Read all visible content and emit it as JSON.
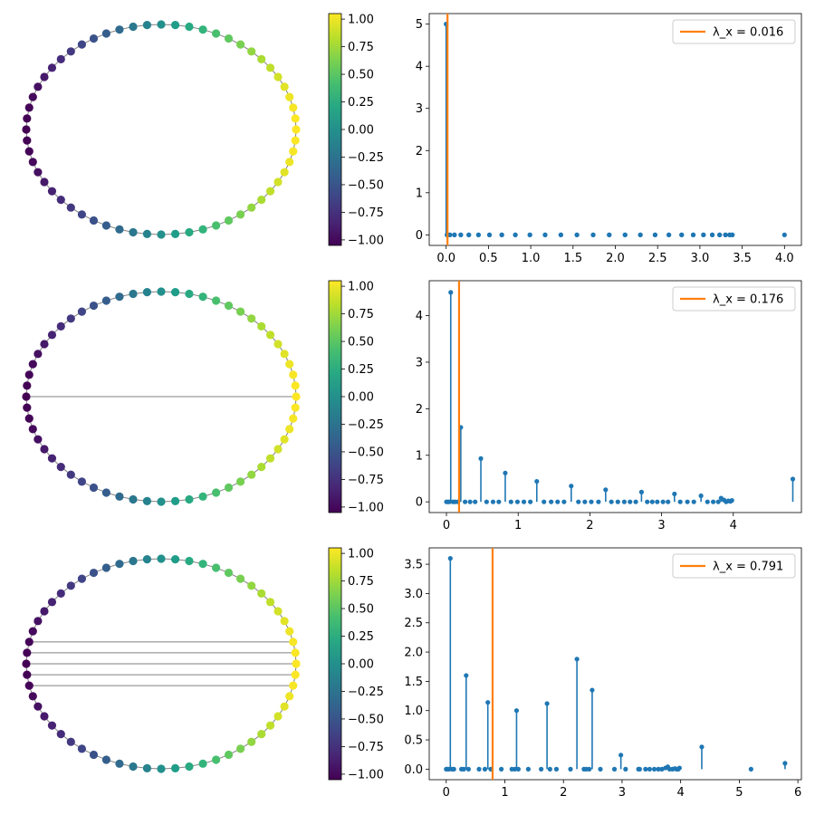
{
  "colors": {
    "stem": "#1f77b4",
    "vline": "#ff7f0e",
    "edge": "#808080"
  },
  "colormap": "viridis",
  "chart_data": [
    {
      "type": "graph",
      "panel": "graph-1",
      "nodes": 60,
      "node_value_range": [
        -1,
        1
      ],
      "chords": 0
    },
    {
      "type": "colorbar",
      "panel": "colorbar-1",
      "range": [
        -1.05,
        1.05
      ],
      "ticks": [
        1.0,
        0.75,
        0.5,
        0.25,
        0.0,
        -0.25,
        -0.5,
        -0.75,
        -1.0
      ],
      "tick_labels": [
        "1.00",
        "0.75",
        "0.50",
        "0.25",
        "0.00",
        "−0.25",
        "−0.50",
        "−0.75",
        "−1.00"
      ]
    },
    {
      "type": "stem",
      "panel": "spectrum-1",
      "xlim": [
        -0.2,
        4.2
      ],
      "ylim": [
        -0.25,
        5.25
      ],
      "xticks": [
        0.0,
        0.5,
        1.0,
        1.5,
        2.0,
        2.5,
        3.0,
        3.5,
        4.0
      ],
      "xtick_labels": [
        "0.0",
        "0.5",
        "1.0",
        "1.5",
        "2.0",
        "2.5",
        "3.0",
        "3.5",
        "4.0"
      ],
      "yticks": [
        0,
        1,
        2,
        3,
        4,
        5
      ],
      "ytick_labels": [
        "0",
        "1",
        "2",
        "3",
        "4",
        "5"
      ],
      "x": [
        0.0,
        0.011,
        0.011,
        0.044,
        0.044,
        0.098,
        0.098,
        0.173,
        0.173,
        0.268,
        0.268,
        0.382,
        0.382,
        0.512,
        0.512,
        0.658,
        0.658,
        0.818,
        0.818,
        0.99,
        0.99,
        1.17,
        1.17,
        1.356,
        1.356,
        1.546,
        1.546,
        1.738,
        1.738,
        1.928,
        1.928,
        2.115,
        2.115,
        2.296,
        2.296,
        2.47,
        2.47,
        2.633,
        2.633,
        2.784,
        2.784,
        2.921,
        2.921,
        3.042,
        3.042,
        3.146,
        3.146,
        3.233,
        3.233,
        3.302,
        3.302,
        3.352,
        3.352,
        3.383,
        3.383,
        4.0
      ],
      "y": [
        5.0,
        0,
        0,
        0,
        0,
        0,
        0,
        0,
        0,
        0,
        0,
        0,
        0,
        0,
        0,
        0,
        0,
        0,
        0,
        0,
        0,
        0,
        0,
        0,
        0,
        0,
        0,
        0,
        0,
        0,
        0,
        0,
        0,
        0,
        0,
        0,
        0,
        0,
        0,
        0,
        0,
        0,
        0,
        0,
        0,
        0,
        0,
        0,
        0,
        0,
        0,
        0,
        0,
        0,
        0,
        0
      ],
      "vline": {
        "x": 0.016,
        "label": "λ_x = 0.016"
      }
    },
    {
      "type": "graph",
      "panel": "graph-2",
      "nodes": 60,
      "node_value_range": [
        -1,
        1
      ],
      "chords": 1
    },
    {
      "type": "colorbar",
      "panel": "colorbar-2",
      "range": [
        -1.05,
        1.05
      ],
      "ticks": [
        1.0,
        0.75,
        0.5,
        0.25,
        0.0,
        -0.25,
        -0.5,
        -0.75,
        -1.0
      ],
      "tick_labels": [
        "1.00",
        "0.75",
        "0.50",
        "0.25",
        "0.00",
        "−0.25",
        "−0.50",
        "−0.75",
        "−1.00"
      ]
    },
    {
      "type": "stem",
      "panel": "spectrum-2",
      "xlim": [
        -0.24,
        4.95
      ],
      "ylim": [
        -0.23,
        4.75
      ],
      "xticks": [
        0,
        1,
        2,
        3,
        4
      ],
      "xtick_labels": [
        "0",
        "1",
        "2",
        "3",
        "4"
      ],
      "yticks": [
        0,
        1,
        2,
        3,
        4
      ],
      "ytick_labels": [
        "0",
        "1",
        "2",
        "3",
        "4"
      ],
      "x": [
        0.0,
        0.02,
        0.04,
        0.06,
        0.09,
        0.12,
        0.16,
        0.2,
        0.26,
        0.33,
        0.4,
        0.48,
        0.56,
        0.65,
        0.73,
        0.82,
        0.9,
        0.99,
        1.08,
        1.17,
        1.26,
        1.36,
        1.46,
        1.55,
        1.64,
        1.74,
        1.84,
        1.93,
        2.02,
        2.12,
        2.22,
        2.3,
        2.39,
        2.48,
        2.56,
        2.64,
        2.72,
        2.8,
        2.87,
        2.94,
        3.02,
        3.09,
        3.18,
        3.26,
        3.36,
        3.45,
        3.55,
        3.64,
        3.72,
        3.79,
        3.83,
        3.87,
        3.9,
        3.93,
        3.96,
        3.98,
        4.83
      ],
      "y": [
        0,
        0,
        0,
        4.5,
        0,
        0,
        0,
        1.6,
        0,
        0,
        0,
        0.93,
        0,
        0,
        0,
        0.62,
        0,
        0,
        0,
        0,
        0.44,
        0,
        0,
        0,
        0,
        0.34,
        0,
        0,
        0,
        0,
        0.26,
        0,
        0,
        0,
        0,
        0,
        0.21,
        0,
        0,
        0,
        0,
        0,
        0.17,
        0,
        0,
        0,
        0.13,
        0,
        0,
        0,
        0.08,
        0.04,
        0,
        0.02,
        0.01,
        0.03,
        0.49
      ],
      "vline": {
        "x": 0.176,
        "label": "λ_x = 0.176"
      }
    },
    {
      "type": "graph",
      "panel": "graph-3",
      "nodes": 60,
      "node_value_range": [
        -1,
        1
      ],
      "chords": 5
    },
    {
      "type": "colorbar",
      "panel": "colorbar-3",
      "range": [
        -1.05,
        1.05
      ],
      "ticks": [
        1.0,
        0.75,
        0.5,
        0.25,
        0.0,
        -0.25,
        -0.5,
        -0.75,
        -1.0
      ],
      "tick_labels": [
        "1.00",
        "0.75",
        "0.50",
        "0.25",
        "0.00",
        "−0.25",
        "−0.50",
        "−0.75",
        "−1.00"
      ]
    },
    {
      "type": "stem",
      "panel": "spectrum-3",
      "xlim": [
        -0.29,
        6.06
      ],
      "ylim": [
        -0.18,
        3.78
      ],
      "xticks": [
        0,
        1,
        2,
        3,
        4,
        5,
        6
      ],
      "xtick_labels": [
        "0",
        "1",
        "2",
        "3",
        "4",
        "5",
        "6"
      ],
      "yticks": [
        0.0,
        0.5,
        1.0,
        1.5,
        2.0,
        2.5,
        3.0,
        3.5
      ],
      "ytick_labels": [
        "0.0",
        "0.5",
        "1.0",
        "1.5",
        "2.0",
        "2.5",
        "3.0",
        "3.5"
      ],
      "x": [
        0.0,
        0.02,
        0.05,
        0.07,
        0.1,
        0.13,
        0.26,
        0.3,
        0.34,
        0.38,
        0.56,
        0.66,
        0.71,
        0.76,
        0.94,
        1.12,
        1.17,
        1.2,
        1.23,
        1.4,
        1.62,
        1.72,
        1.77,
        1.88,
        2.12,
        2.23,
        2.35,
        2.39,
        2.44,
        2.49,
        2.63,
        2.87,
        2.98,
        3.06,
        3.28,
        3.3,
        3.4,
        3.47,
        3.55,
        3.62,
        3.68,
        3.74,
        3.78,
        3.81,
        3.86,
        3.9,
        3.93,
        3.96,
        3.98,
        4.36,
        5.2,
        5.78
      ],
      "y": [
        0,
        0,
        0,
        3.6,
        0,
        0,
        0,
        0,
        1.6,
        0,
        0,
        0,
        1.14,
        0,
        0,
        0,
        0,
        1.0,
        0,
        0,
        0,
        1.12,
        0,
        0,
        0,
        1.88,
        0,
        0,
        0,
        1.35,
        0,
        0,
        0.24,
        0,
        0,
        0,
        0,
        0,
        0,
        0,
        0,
        0.02,
        0.04,
        0,
        0,
        0.01,
        0,
        0,
        0.02,
        0.38,
        0,
        0.1
      ],
      "vline": {
        "x": 0.791,
        "label": "λ_x = 0.791"
      }
    }
  ]
}
